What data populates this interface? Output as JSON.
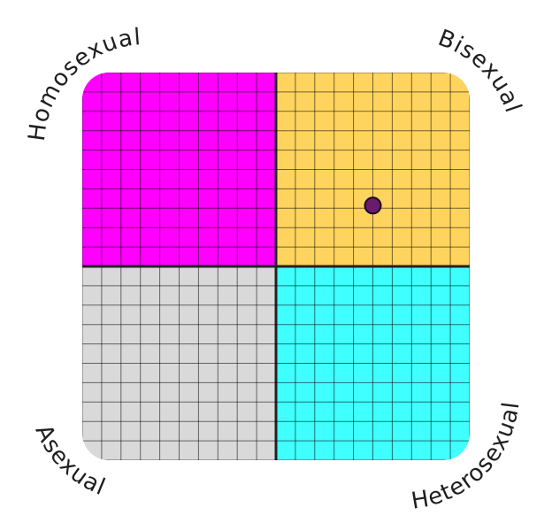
{
  "chart_data": {
    "type": "scatter",
    "title": "",
    "xlabel": "",
    "ylabel": "",
    "xlim": [
      -10,
      10
    ],
    "ylim": [
      -10,
      10
    ],
    "grid": true,
    "grid_step": 1,
    "quadrants": [
      {
        "name": "Homosexual",
        "position": "top-left",
        "color": "#ff00ff"
      },
      {
        "name": "Bisexual",
        "position": "top-right",
        "color": "#ffd45e"
      },
      {
        "name": "Asexual",
        "position": "bottom-left",
        "color": "#d9d9d9"
      },
      {
        "name": "Heterosexual",
        "position": "bottom-right",
        "color": "#40ffff"
      }
    ],
    "points": [
      {
        "x": 5,
        "y": 3,
        "color": "#6a1b6e"
      }
    ]
  }
}
